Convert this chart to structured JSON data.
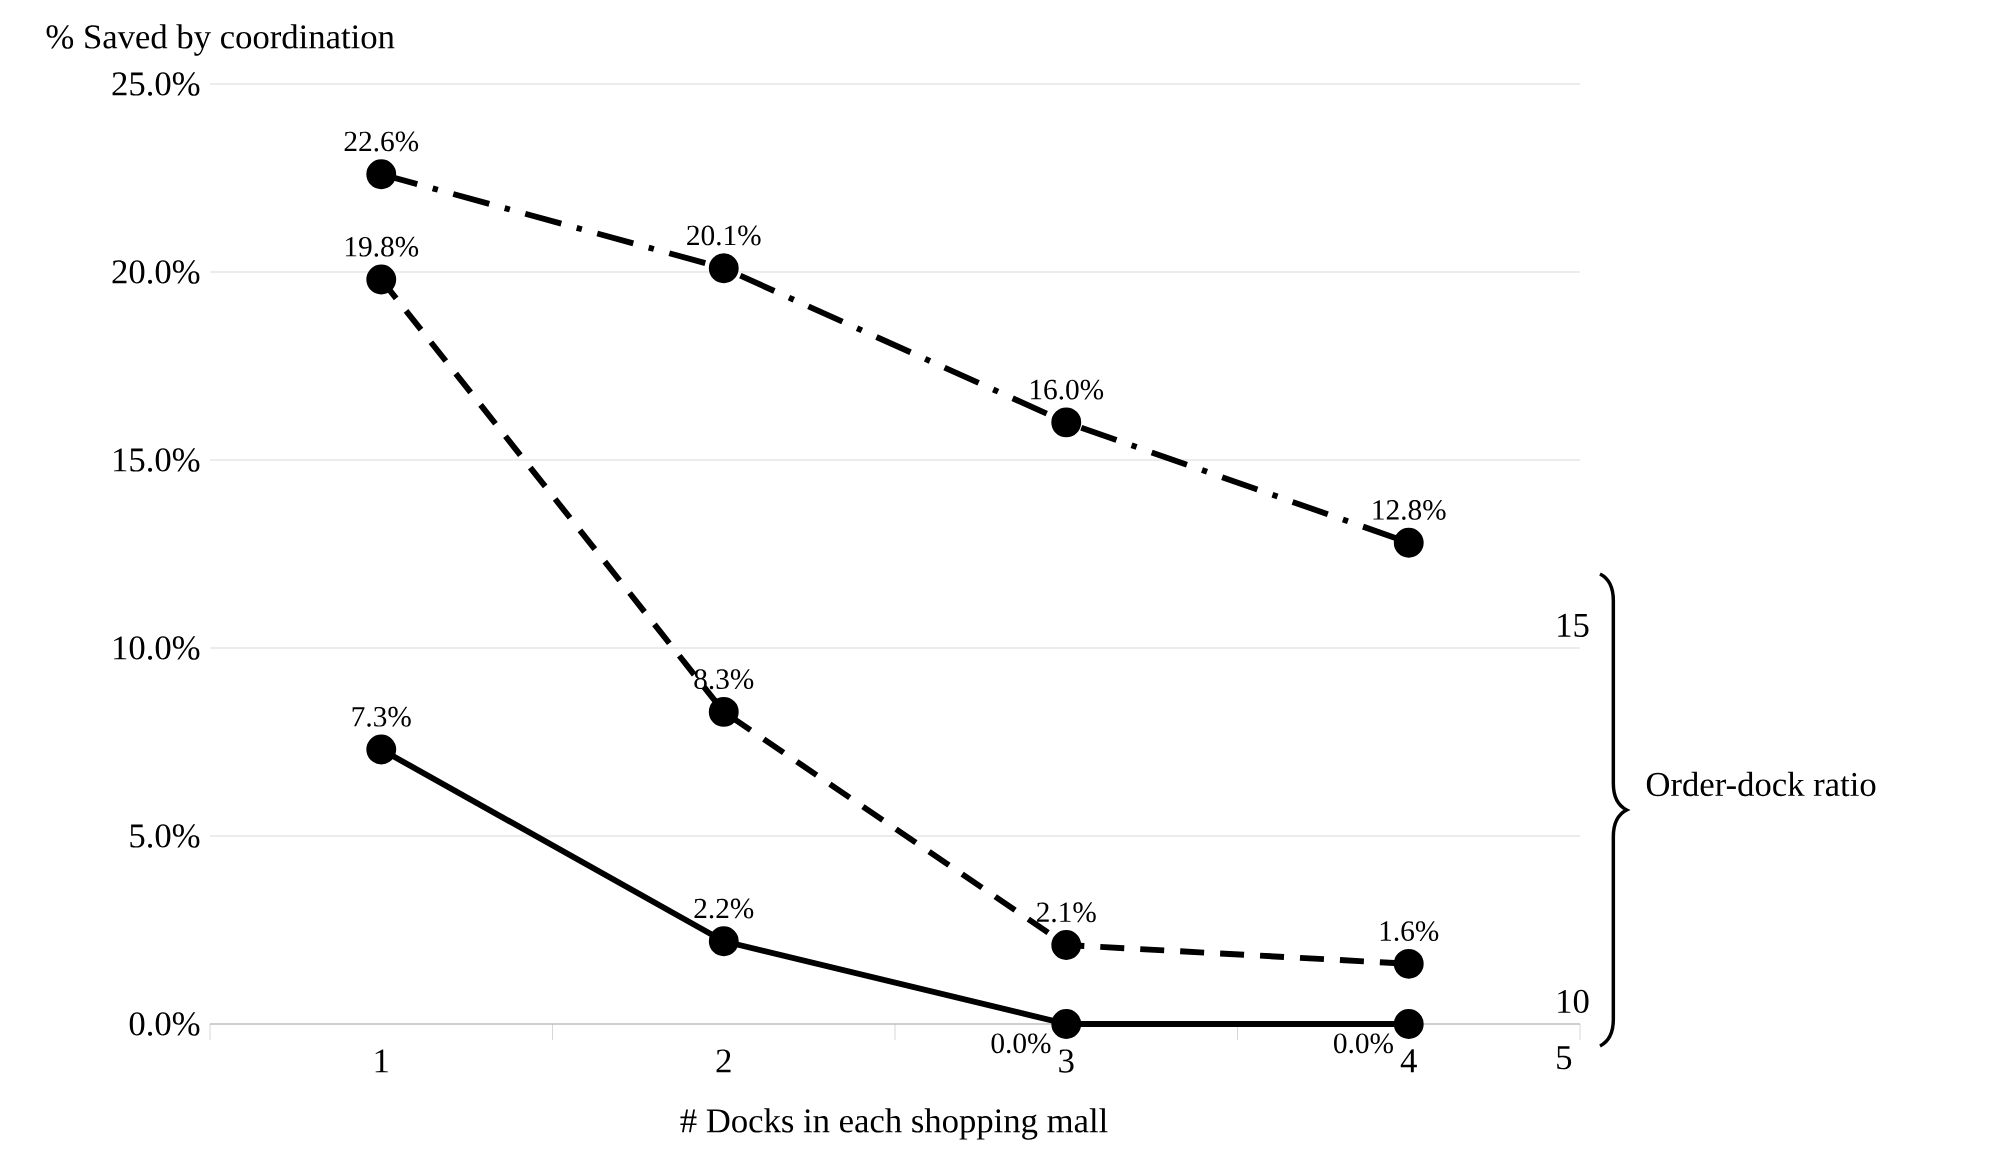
{
  "chart_data": {
    "type": "line",
    "ylabel": "% Saved by coordination",
    "xlabel": "# Docks in each shopping mall",
    "categories": [
      "1",
      "2",
      "3",
      "4"
    ],
    "series": [
      {
        "name": "15",
        "color": "#000000",
        "line_style": "dashdot",
        "values": [
          22.6,
          20.1,
          16.0,
          12.8
        ],
        "value_labels": [
          "22.6%",
          "20.1%",
          "16.0%",
          "12.8%"
        ]
      },
      {
        "name": "10",
        "color": "#000000",
        "line_style": "dashed",
        "values": [
          19.8,
          8.3,
          2.1,
          1.6
        ],
        "value_labels": [
          "19.8%",
          "8.3%",
          "2.1%",
          "1.6%"
        ]
      },
      {
        "name": "5",
        "color": "#000000",
        "line_style": "solid",
        "values": [
          7.3,
          2.2,
          0.0,
          0.0
        ],
        "value_labels": [
          "7.3%",
          "2.2%",
          "0.0%",
          "0.0%"
        ]
      }
    ],
    "ylim": [
      0,
      25
    ],
    "yticks": [
      {
        "value": 0,
        "label": "0.0%"
      },
      {
        "value": 5,
        "label": "5.0%"
      },
      {
        "value": 10,
        "label": "10.0%"
      },
      {
        "value": 15,
        "label": "15.0%"
      },
      {
        "value": 20,
        "label": "20.0%"
      },
      {
        "value": 25,
        "label": "25.0%"
      }
    ],
    "grid": "y",
    "legend": false,
    "marker": "circle",
    "annotations": [
      "Order-dock ratio"
    ]
  }
}
